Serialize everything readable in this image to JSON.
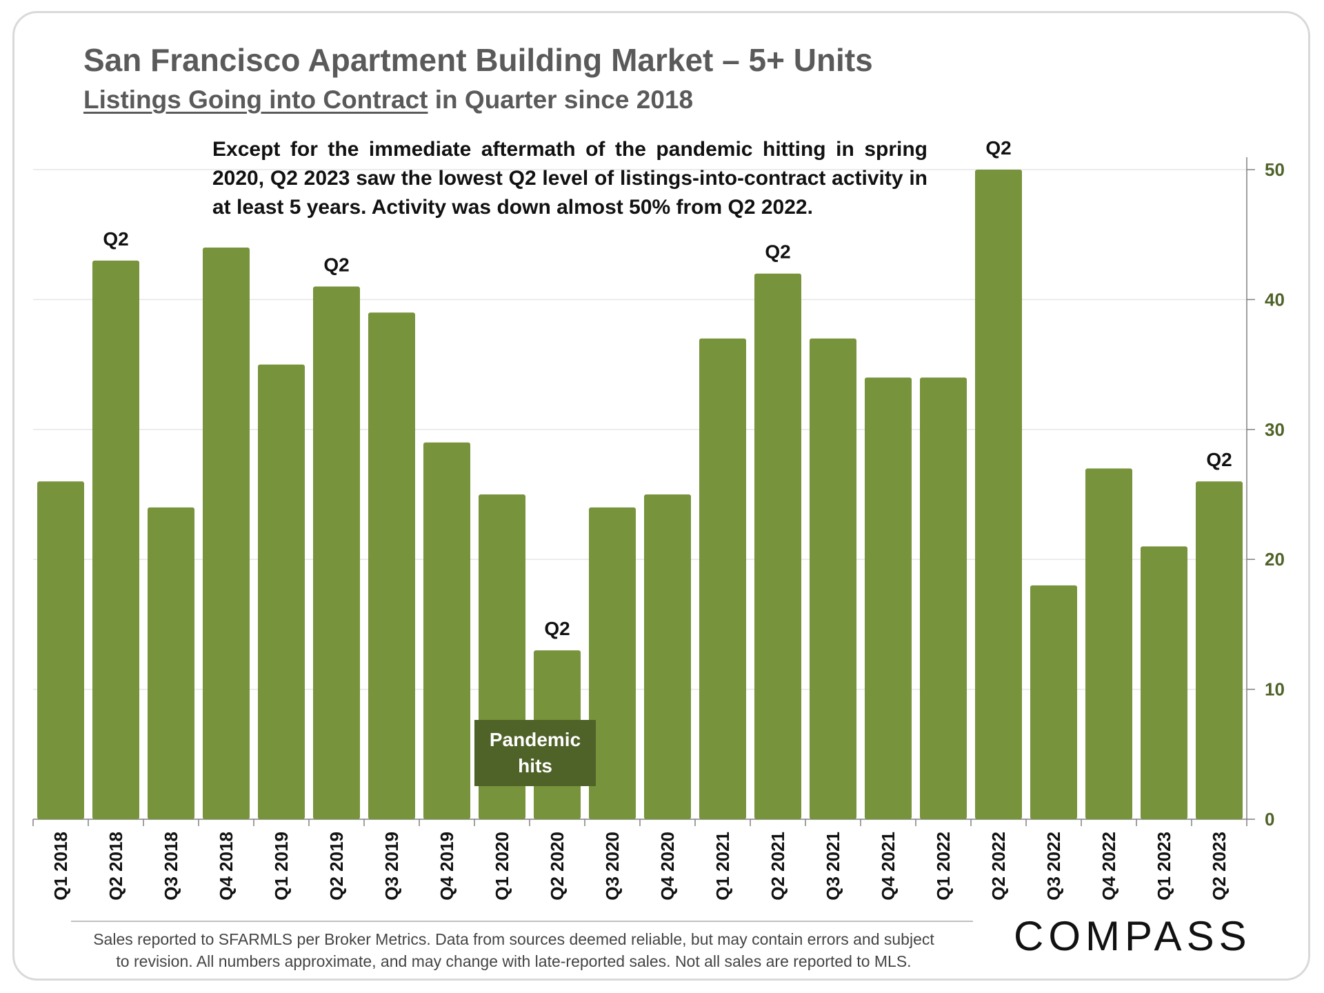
{
  "header": {
    "title": "San Francisco Apartment Building Market – 5+ Units",
    "subtitle_underlined": "Listings Going into Contract",
    "subtitle_rest": " in Quarter since 2018"
  },
  "annotation": {
    "text": "Except for the immediate aftermath of the pandemic hitting in spring 2020, Q2 2023 saw the lowest Q2 level of listings-into-contract activity in at least 5 years. Activity was down almost 50% from Q2 2022.",
    "pandemic_label_line1": "Pandemic",
    "pandemic_label_line2": "hits",
    "q2_marker": "Q2"
  },
  "chart_data": {
    "type": "bar",
    "title": "San Francisco Apartment Building Market – 5+ Units",
    "subtitle": "Listings Going into Contract in Quarter since 2018",
    "categories": [
      "Q1 2018",
      "Q2 2018",
      "Q3 2018",
      "Q4 2018",
      "Q1 2019",
      "Q2 2019",
      "Q3 2019",
      "Q4 2019",
      "Q1 2020",
      "Q2 2020",
      "Q3 2020",
      "Q4 2020",
      "Q1 2021",
      "Q2 2021",
      "Q3 2021",
      "Q4 2021",
      "Q1 2022",
      "Q2 2022",
      "Q3 2022",
      "Q4 2022",
      "Q1 2023",
      "Q2 2023"
    ],
    "values": [
      26,
      43,
      24,
      44,
      35,
      41,
      39,
      29,
      25,
      13,
      24,
      25,
      37,
      42,
      37,
      34,
      34,
      50,
      18,
      27,
      21,
      26
    ],
    "q2_labeled_indices": [
      1,
      5,
      9,
      13,
      17,
      21
    ],
    "yaxis_position": "right",
    "ylim": [
      0,
      50
    ],
    "yticks": [
      0,
      10,
      20,
      30,
      40,
      50
    ],
    "grid": true,
    "colors": {
      "bar": "#77933c",
      "annotation_box": "#4f6228",
      "axis_text": "#4f6228",
      "gridline": "#e6e6e6"
    }
  },
  "footer": {
    "disclaimer_line1": "Sales reported to SFARMLS per Broker Metrics. Data from sources deemed reliable, but may contain errors and subject",
    "disclaimer_line2": "to revision. All numbers approximate, and may change with late-reported sales. Not all sales are reported to MLS.",
    "logo_text": "COMPASS"
  }
}
